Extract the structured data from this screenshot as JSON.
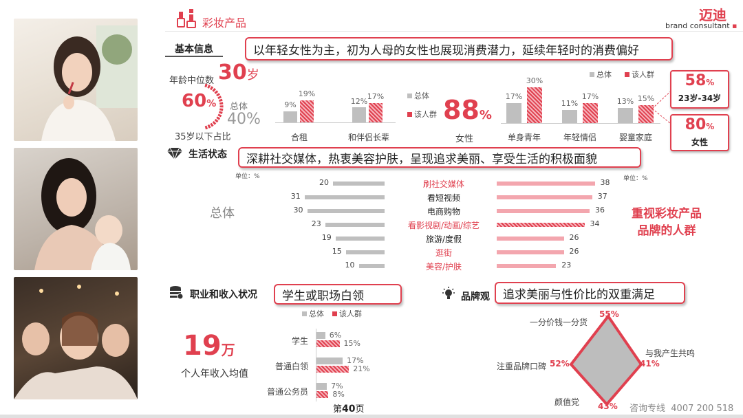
{
  "header": {
    "section_title": "彩妆产品",
    "brand_name": "迈迪",
    "brand_sub": "brand consultant"
  },
  "basic": {
    "tag": "基本信息",
    "headline": "以年轻女性为主，初为人母的女性也展现消费潜力，延续年轻时的消费偏好",
    "median_age_label": "年龄中位数",
    "median_age_value": "30",
    "median_age_unit": "岁",
    "under35_pct": "60",
    "under35_unit": "%",
    "overall_label": "总体",
    "overall_pct": "40%",
    "under35_caption": "35岁以下占比",
    "living_chart": {
      "categories": [
        "合租",
        "和伴侣长辈"
      ],
      "overall": [
        9,
        12
      ],
      "target": [
        19,
        17
      ]
    },
    "legend_overall": "总体",
    "legend_target": "该人群",
    "female_pct": "88",
    "female_unit": "%",
    "female_label": "女性",
    "stage_chart": {
      "categories": [
        "单身青年",
        "年轻情侣",
        "婴童家庭"
      ],
      "overall": [
        17,
        11,
        13
      ],
      "target": [
        30,
        17,
        15
      ]
    },
    "callout_age_value": "58",
    "callout_age_unit": "%",
    "callout_age_label": "23岁-34岁",
    "callout_female_value": "80",
    "callout_female_unit": "%",
    "callout_female_label": "女性"
  },
  "life": {
    "tag": "生活状态",
    "headline": "深耕社交媒体，热衷美容护肤，呈现追求美丽、享受生活的积极面貌",
    "unit_left": "单位：%",
    "unit_right": "单位：%",
    "overall_label": "总体",
    "highlight_line1": "重视彩妆产品",
    "highlight_line2": "品牌的人群",
    "chart_data": {
      "type": "bar",
      "categories": [
        "刷社交媒体",
        "看短视频",
        "电商购物",
        "看影视剧/动画/综艺",
        "旅游/度假",
        "逛街",
        "美容/护肤"
      ],
      "series": [
        {
          "name": "总体",
          "values": [
            20,
            31,
            30,
            23,
            19,
            15,
            10
          ]
        },
        {
          "name": "重视彩妆产品品牌的人群",
          "values": [
            38,
            37,
            36,
            34,
            26,
            26,
            23
          ]
        }
      ],
      "highlight": [
        true,
        false,
        false,
        true,
        false,
        true,
        true
      ]
    }
  },
  "career": {
    "tag": "职业和收入状况",
    "headline": "学生或职场白领",
    "income_value": "19",
    "income_unit": "万",
    "income_label": "个人年收入均值",
    "legend_overall": "总体",
    "legend_target": "该人群",
    "chart": {
      "categories": [
        "学生",
        "普通白领",
        "普通公务员"
      ],
      "overall": [
        6,
        17,
        7
      ],
      "target": [
        15,
        21,
        8
      ]
    }
  },
  "brand": {
    "tag": "品牌观",
    "headline": "追求美丽与性价比的双重满足",
    "radar": {
      "labels": [
        "一分价钱一分货",
        "与我产生共鸣",
        "颜值党",
        "注重品牌口碑"
      ],
      "values": [
        "55%",
        "41%",
        "43%",
        "52%"
      ]
    }
  },
  "footer": {
    "page_prefix": "第",
    "page_number": "40",
    "page_suffix": "页",
    "hotline_label": "咨询专线",
    "hotline_number": "4007 200 518"
  }
}
